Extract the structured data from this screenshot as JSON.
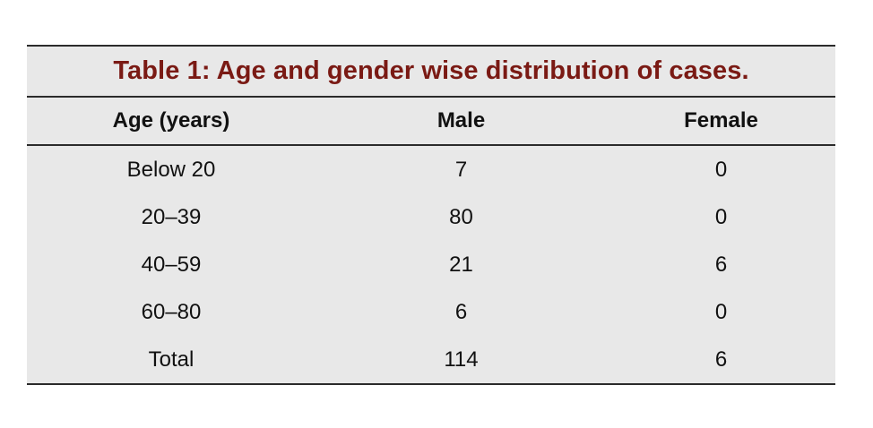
{
  "table": {
    "caption": "Table 1: Age and gender wise distribution of cases.",
    "headers": [
      "Age (years)",
      "Male",
      "Female"
    ],
    "rows": [
      [
        "Below 20",
        "7",
        "0"
      ],
      [
        "20–39",
        "80",
        "0"
      ],
      [
        "40–59",
        "21",
        "6"
      ],
      [
        "60–80",
        "6",
        "0"
      ],
      [
        "Total",
        "114",
        "6"
      ]
    ],
    "colors": {
      "caption": "#7a1a14",
      "background": "#e8e8e8",
      "rule": "#2b2b2b"
    }
  }
}
